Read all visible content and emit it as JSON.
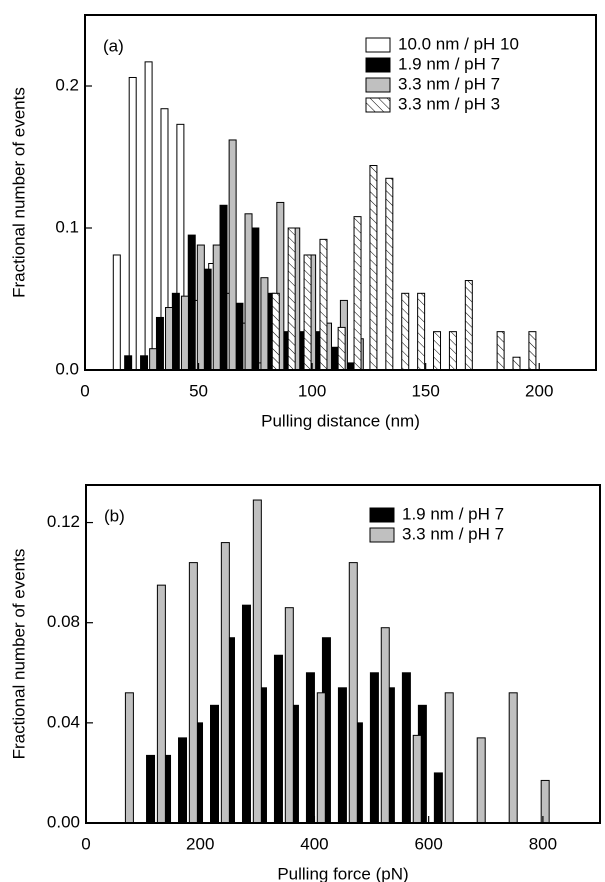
{
  "chart_data": [
    {
      "type": "bar",
      "panel_label": "(a)",
      "x_label": "Pulling distance (nm)",
      "y_label": "Fractional number of events",
      "xlim": [
        0,
        225
      ],
      "xticks": [
        0,
        50,
        100,
        150,
        200
      ],
      "ylim": [
        0,
        0.25
      ],
      "yticks": [
        {
          "value": 0,
          "label": "0.0"
        },
        0.1,
        0.2
      ],
      "legend": "upper right",
      "series": [
        {
          "name": "10.0 nm / pH 10",
          "color": "#ffffff",
          "hatch": false,
          "x": [
            14,
            21,
            28,
            35,
            42,
            49,
            56,
            63,
            70,
            77
          ],
          "values": [
            0.081,
            0.206,
            0.217,
            0.184,
            0.173,
            0.049,
            0.075,
            0.054,
            0.033,
            0.005
          ]
        },
        {
          "name": "1.9 nm / pH 7",
          "color": "#000000",
          "hatch": false,
          "x": [
            19,
            26,
            33,
            40,
            47,
            54,
            61,
            68,
            75,
            82,
            89,
            96,
            103,
            110,
            117
          ],
          "values": [
            0.01,
            0.01,
            0.037,
            0.054,
            0.095,
            0.071,
            0.116,
            0.047,
            0.1,
            0.054,
            0.027,
            0.027,
            0.027,
            0.016,
            0.005
          ]
        },
        {
          "name": "3.3 nm / pH 7",
          "color": "#c0c0c0",
          "hatch": false,
          "x": [
            30,
            37,
            44,
            51,
            58,
            65,
            72,
            79,
            86,
            93,
            100,
            107,
            114,
            121
          ],
          "values": [
            0.015,
            0.044,
            0.052,
            0.088,
            0.088,
            0.162,
            0.11,
            0.065,
            0.118,
            0.1,
            0.081,
            0.033,
            0.049,
            0.022
          ]
        },
        {
          "name": "3.3 nm / pH 3",
          "color": "#ffffff",
          "hatch": true,
          "x": [
            84,
            91,
            98,
            105,
            113,
            120,
            127,
            134,
            141,
            148,
            155,
            162,
            169,
            183,
            190,
            197
          ],
          "values": [
            0.054,
            0.1,
            0.081,
            0.092,
            0.03,
            0.108,
            0.144,
            0.135,
            0.054,
            0.054,
            0.027,
            0.027,
            0.063,
            0.027,
            0.009,
            0.027
          ]
        }
      ]
    },
    {
      "type": "bar",
      "panel_label": "(b)",
      "x_label": "Pulling force (pN)",
      "y_label": "Fractional number of events",
      "xlim": [
        0,
        900
      ],
      "xticks": [
        0,
        200,
        400,
        600,
        800
      ],
      "ylim": [
        0,
        0.135
      ],
      "yticks": [
        {
          "value": 0,
          "label": "0.00"
        },
        {
          "value": 0.04,
          "label": "0.04"
        },
        {
          "value": 0.08,
          "label": "0.08"
        },
        {
          "value": 0.12,
          "label": "0.12"
        }
      ],
      "legend": "upper right",
      "series": [
        {
          "name": "1.9 nm / pH 7",
          "color": "#000000",
          "hatch": false,
          "x": [
            113,
            141,
            169,
            197,
            225,
            253,
            281,
            309,
            337,
            365,
            393,
            421,
            449,
            477,
            505,
            533,
            561,
            589,
            617
          ],
          "values": [
            0.027,
            0.027,
            0.034,
            0.04,
            0.047,
            0.074,
            0.087,
            0.054,
            0.067,
            0.047,
            0.06,
            0.074,
            0.054,
            0.04,
            0.06,
            0.054,
            0.06,
            0.047,
            0.02
          ]
        },
        {
          "name": "3.3 nm / pH 7",
          "color": "#c0c0c0",
          "hatch": false,
          "x": [
            76,
            132,
            188,
            244,
            300,
            356,
            412,
            468,
            524,
            580,
            636,
            692,
            748,
            804
          ],
          "values": [
            0.052,
            0.095,
            0.104,
            0.112,
            0.129,
            0.086,
            0.052,
            0.104,
            0.078,
            0.035,
            0.052,
            0.034,
            0.052,
            0.017
          ]
        }
      ]
    }
  ]
}
